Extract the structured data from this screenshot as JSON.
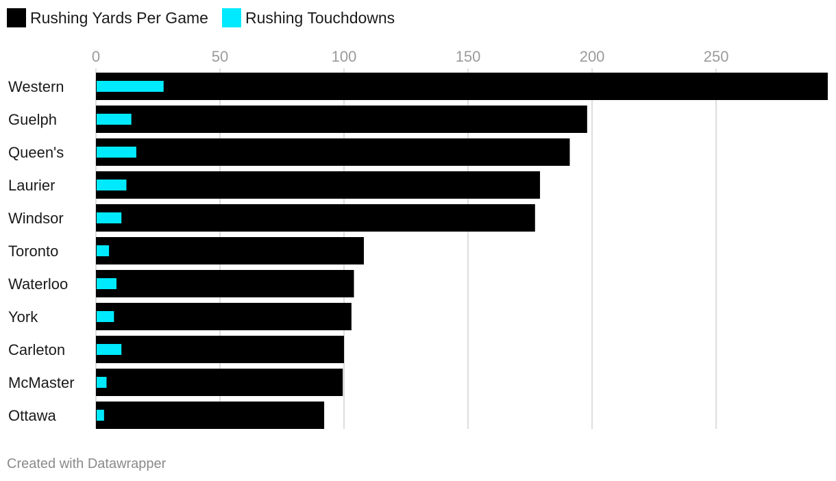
{
  "chart_data": {
    "type": "bar",
    "orientation": "horizontal",
    "categories": [
      "Western",
      "Guelph",
      "Queen's",
      "Laurier",
      "Windsor",
      "Toronto",
      "Waterloo",
      "York",
      "Carleton",
      "McMaster",
      "Ottawa"
    ],
    "series": [
      {
        "name": "Rushing Yards Per Game",
        "color": "#000000",
        "values": [
          295,
          198,
          191,
          179,
          177,
          108,
          104,
          103,
          100,
          99.5,
          92
        ]
      },
      {
        "name": "Rushing Touchdowns",
        "color": "#00eaff",
        "values": [
          27,
          14,
          16,
          12,
          10,
          5,
          8,
          7,
          10,
          4,
          3
        ]
      }
    ],
    "xlim": [
      0,
      295
    ],
    "xticks": [
      0,
      50,
      100,
      150,
      200,
      250
    ],
    "grid": true,
    "legend_position": "top-left"
  },
  "footer": "Created with Datawrapper"
}
